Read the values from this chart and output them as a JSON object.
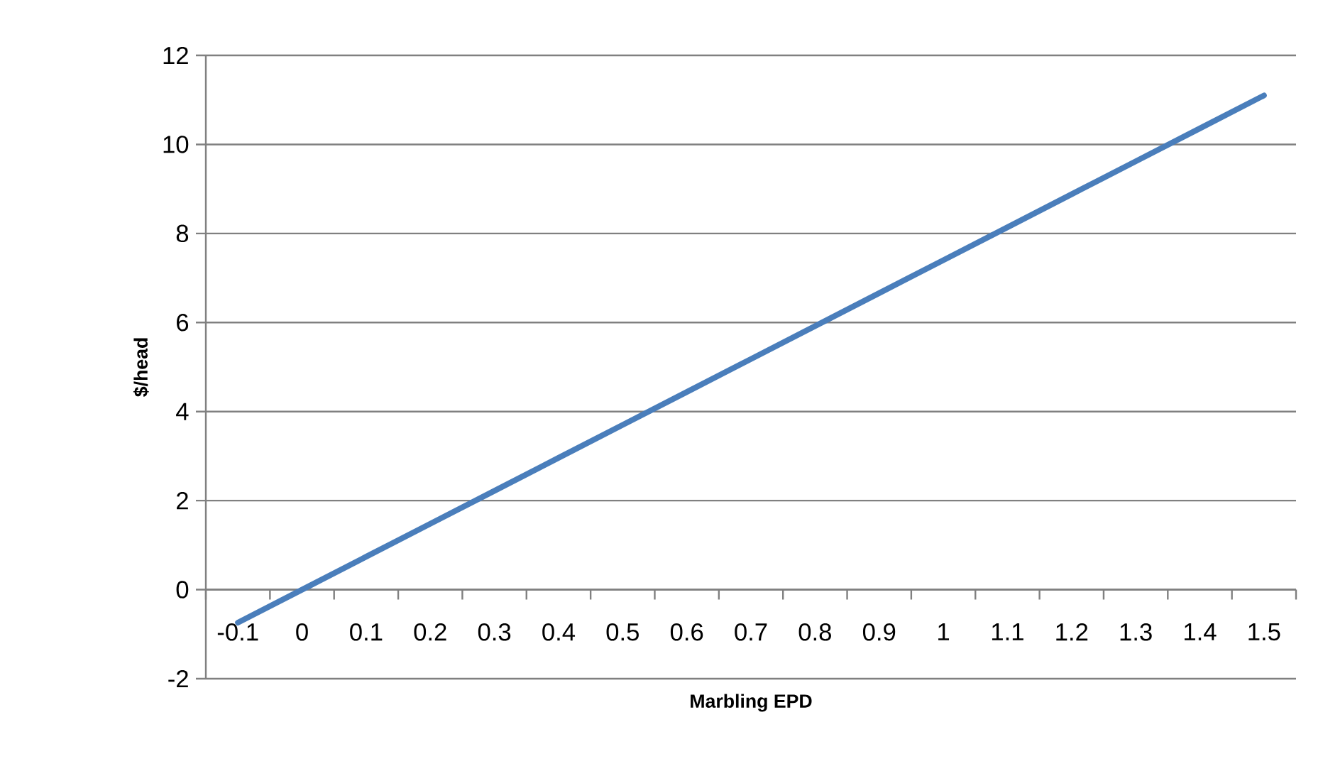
{
  "chart_data": {
    "type": "line",
    "xlabel": "Marbling EPD",
    "ylabel": "$/head",
    "categories": [
      "-0.1",
      "0",
      "0.1",
      "0.2",
      "0.3",
      "0.4",
      "0.5",
      "0.6",
      "0.7",
      "0.8",
      "0.9",
      "1",
      "1.1",
      "1.2",
      "1.3",
      "1.4",
      "1.5"
    ],
    "values": [
      -0.74,
      0,
      0.74,
      1.48,
      2.22,
      2.96,
      3.7,
      4.44,
      5.18,
      5.92,
      6.66,
      7.4,
      8.14,
      8.88,
      9.62,
      10.36,
      11.1
    ],
    "color": "#4a7ebb",
    "ylim": [
      -2,
      12
    ],
    "yticks": [
      -2,
      0,
      2,
      4,
      6,
      8,
      10,
      12
    ],
    "grid": "y",
    "marker": "none",
    "line_style": "solid"
  }
}
